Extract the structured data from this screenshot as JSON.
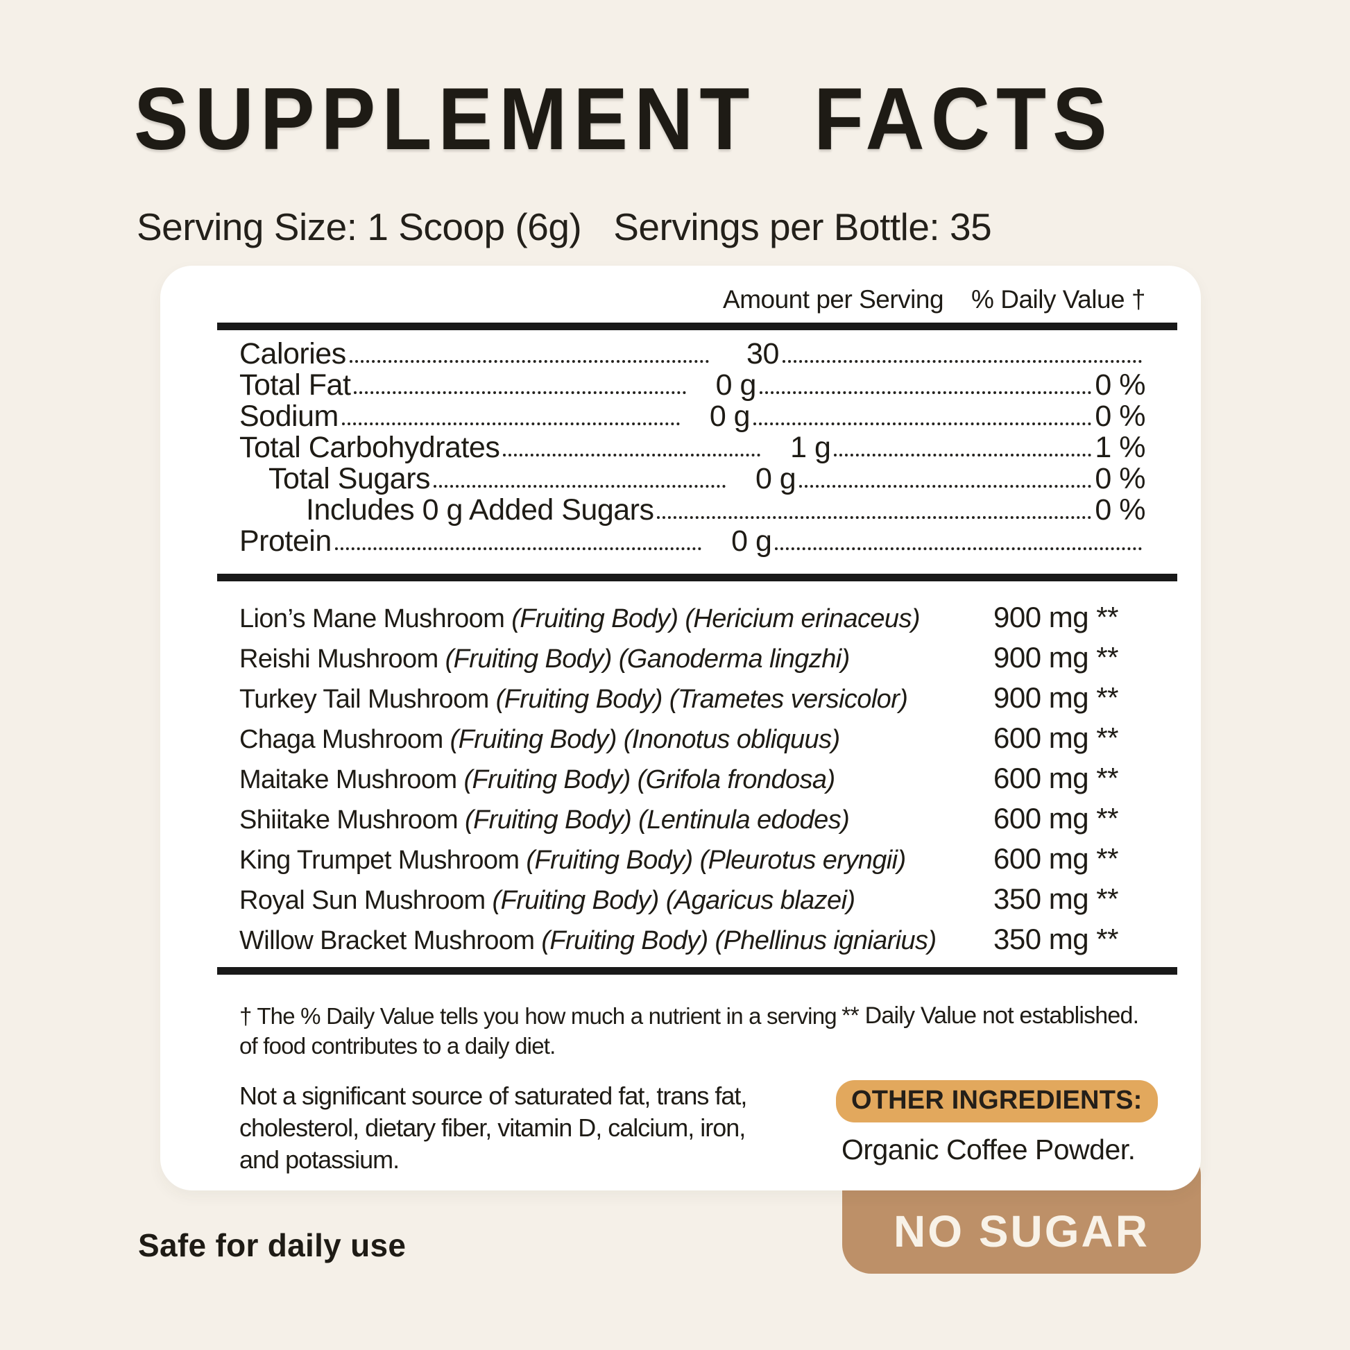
{
  "colors": {
    "background": "#F5F0E8",
    "ink": "#1E1B15",
    "rule": "#191919",
    "badge_tan": "#BD9068",
    "pill_gold": "#E2A85D",
    "badge_text": "#F8F2E8",
    "card": "#FFFFFF"
  },
  "header": {
    "title": "SUPPLEMENT  FACTS",
    "serving_size": "Serving Size: 1 Scoop (6g)",
    "servings_per_bottle": "Servings per Bottle: 35"
  },
  "panel": {
    "columns": {
      "amount": "Amount per Serving",
      "daily_value": "% Daily Value †"
    },
    "nutrition_rows": [
      {
        "label": "Calories",
        "indent": 0,
        "value": "30",
        "pct": null
      },
      {
        "label": "Total Fat",
        "indent": 0,
        "value": "0 g",
        "pct": "0 %"
      },
      {
        "label": "Sodium",
        "indent": 0,
        "value": "0 g",
        "pct": "0 %"
      },
      {
        "label": "Total Carbohydrates",
        "indent": 0,
        "value": "1 g",
        "pct": "1 %"
      },
      {
        "label": "Total Sugars",
        "indent": 1,
        "value": "0 g",
        "pct": "0 %"
      },
      {
        "label": "Includes 0 g Added Sugars",
        "indent": 2,
        "value": null,
        "pct": "0 %"
      },
      {
        "label": "Protein",
        "indent": 0,
        "value": "0 g",
        "pct": null
      }
    ],
    "ingredient_rows": [
      {
        "name": "Lion’s Mane Mushroom ",
        "detail": "(Fruiting Body) (Hericium erinaceus)",
        "amount": "900 mg **"
      },
      {
        "name": "Reishi Mushroom ",
        "detail": "(Fruiting Body) (Ganoderma lingzhi)",
        "amount": "900 mg **"
      },
      {
        "name": "Turkey Tail Mushroom ",
        "detail": "(Fruiting Body) (Trametes versicolor)",
        "amount": "900 mg **"
      },
      {
        "name": "Chaga Mushroom ",
        "detail": "(Fruiting Body) (Inonotus obliquus)",
        "amount": "600 mg **"
      },
      {
        "name": "Maitake Mushroom ",
        "detail": "(Fruiting Body) (Grifola frondosa)",
        "amount": "600 mg **"
      },
      {
        "name": "Shiitake Mushroom ",
        "detail": "(Fruiting Body) (Lentinula edodes)",
        "amount": "600 mg **"
      },
      {
        "name": "King Trumpet Mushroom ",
        "detail": "(Fruiting Body) (Pleurotus eryngii)",
        "amount": "600 mg **"
      },
      {
        "name": "Royal Sun Mushroom ",
        "detail": "(Fruiting Body) (Agaricus blazei)",
        "amount": "350 mg **"
      },
      {
        "name": "Willow Bracket Mushroom ",
        "detail": "(Fruiting Body) (Phellinus igniarius)",
        "amount": "350 mg **"
      }
    ],
    "footnotes": {
      "dagger_note": "† The % Daily Value tells you how much a nutrient in a serving of food contributes to a daily diet.",
      "dv_note": "** Daily Value not established.",
      "not_significant": "Not a significant source of saturated fat, trans fat, cholesterol, dietary fiber, vitamin D, calcium, iron, and potassium.",
      "other_ingredients_label": "OTHER INGREDIENTS:",
      "other_ingredients_value": "Organic Coffee Powder."
    }
  },
  "footer": {
    "safe_note": "Safe for daily use",
    "badge": "NO SUGAR"
  }
}
